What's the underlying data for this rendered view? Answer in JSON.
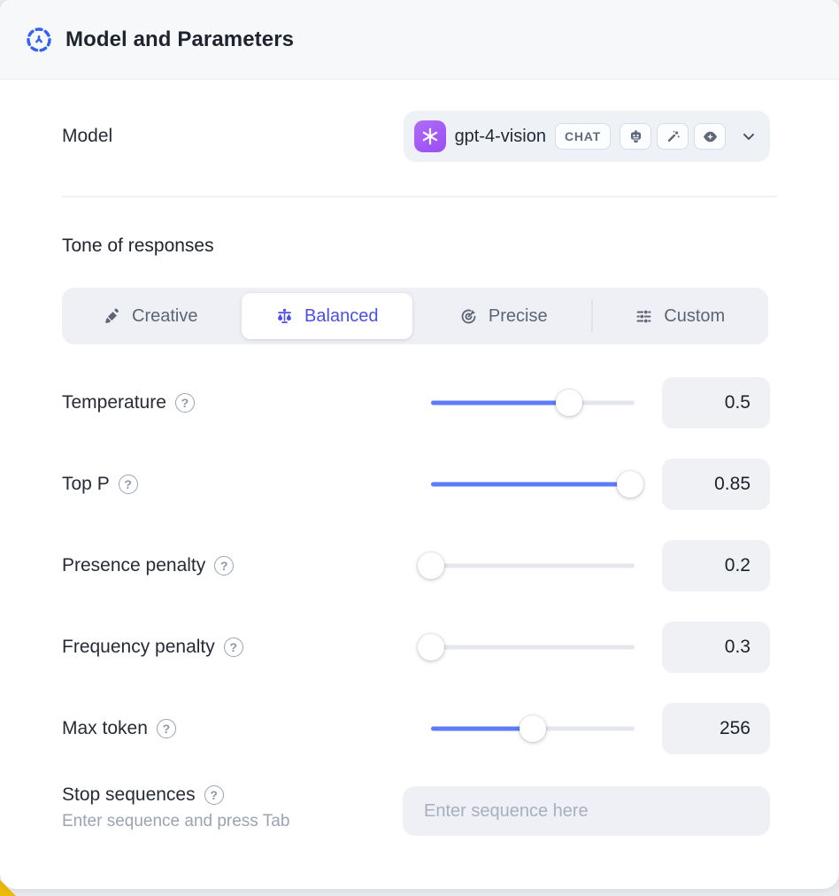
{
  "header": {
    "title": "Model and Parameters"
  },
  "model_row": {
    "label": "Model",
    "selected_model": "gpt-4-vision",
    "badge": "CHAT",
    "capability_icons": [
      "robot-icon",
      "wand-sparkles-icon",
      "vision-eye-icon"
    ]
  },
  "tone": {
    "title": "Tone of responses",
    "options": [
      {
        "label": "Creative",
        "icon": "paintbrush-icon",
        "selected": false
      },
      {
        "label": "Balanced",
        "icon": "balance-scale-icon",
        "selected": true
      },
      {
        "label": "Precise",
        "icon": "target-icon",
        "selected": false
      },
      {
        "label": "Custom",
        "icon": "sliders-icon",
        "selected": false
      }
    ]
  },
  "parameters": [
    {
      "label": "Temperature",
      "value": "0.5",
      "slider_percent": 68
    },
    {
      "label": "Top P",
      "value": "0.85",
      "slider_percent": 98
    },
    {
      "label": "Presence penalty",
      "value": "0.2",
      "slider_percent": 0
    },
    {
      "label": "Frequency penalty",
      "value": "0.3",
      "slider_percent": 0
    },
    {
      "label": "Max token",
      "value": "256",
      "slider_percent": 50
    }
  ],
  "stop_sequences": {
    "label": "Stop sequences",
    "hint": "Enter sequence and press Tab",
    "placeholder": "Enter sequence here"
  },
  "colors": {
    "accent_blue": "#5c7cfa",
    "selected_tab_blue": "#4b4fe2",
    "header_icon_blue": "#3462f5",
    "openai_purple": "#a55bf5",
    "background_accent_yellow": "#edb90a"
  }
}
